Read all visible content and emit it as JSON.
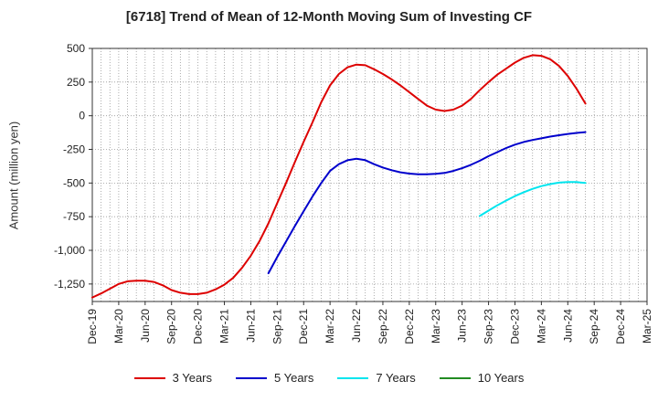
{
  "chart_data": {
    "type": "line",
    "title": "[6718]  Trend of Mean of 12-Month Moving Sum of Investing CF",
    "xlabel": "",
    "ylabel": "Amount (million yen)",
    "x_categories": [
      "Dec-19",
      "Mar-20",
      "Jun-20",
      "Sep-20",
      "Dec-20",
      "Mar-21",
      "Jun-21",
      "Sep-21",
      "Dec-21",
      "Mar-22",
      "Jun-22",
      "Sep-22",
      "Dec-22",
      "Mar-23",
      "Jun-23",
      "Sep-23",
      "Dec-23",
      "Mar-24",
      "Jun-24",
      "Sep-24",
      "Dec-24",
      "Mar-25"
    ],
    "y_ticks": [
      "500",
      "250",
      "0",
      "-250",
      "-500",
      "-750",
      "-1,000",
      "-1,250"
    ],
    "y_tick_values": [
      500,
      250,
      0,
      -250,
      -500,
      -750,
      -1000,
      -1250
    ],
    "ylim": [
      -1380,
      500
    ],
    "grid": true,
    "legend_position": "bottom",
    "series": [
      {
        "name": "3 Years",
        "color": "#dd0000",
        "x": [
          0,
          0.333,
          0.667,
          1,
          1.333,
          1.667,
          2,
          2.333,
          2.667,
          3,
          3.333,
          3.667,
          4,
          4.333,
          4.667,
          5,
          5.333,
          5.667,
          6,
          6.333,
          6.667,
          7,
          7.333,
          7.667,
          8,
          8.333,
          8.667,
          9,
          9.333,
          9.667,
          10,
          10.333,
          10.667,
          11,
          11.333,
          11.667,
          12,
          12.333,
          12.667,
          13,
          13.333,
          13.667,
          14,
          14.333,
          14.667,
          15,
          15.333,
          15.667,
          16,
          16.333,
          16.667,
          17,
          17.333,
          17.667,
          18,
          18.333,
          18.667,
          19
        ],
        "values": [
          -1350,
          -1320,
          -1285,
          -1250,
          -1230,
          -1225,
          -1225,
          -1235,
          -1260,
          -1295,
          -1315,
          -1325,
          -1325,
          -1315,
          -1290,
          -1255,
          -1205,
          -1130,
          -1040,
          -930,
          -800,
          -650,
          -500,
          -345,
          -195,
          -50,
          100,
          225,
          310,
          360,
          380,
          375,
          345,
          310,
          270,
          225,
          175,
          125,
          75,
          45,
          35,
          45,
          75,
          125,
          190,
          250,
          305,
          350,
          395,
          430,
          450,
          445,
          420,
          370,
          295,
          200,
          90,
          null
        ]
      },
      {
        "name": "5 Years",
        "color": "#0000cc",
        "x": [
          6.667,
          7,
          7.333,
          7.667,
          8,
          8.333,
          8.667,
          9,
          9.333,
          9.667,
          10,
          10.333,
          10.667,
          11,
          11.333,
          11.667,
          12,
          12.333,
          12.667,
          13,
          13.333,
          13.667,
          14,
          14.333,
          14.667,
          15,
          15.333,
          15.667,
          16,
          16.333,
          16.667,
          17,
          17.333,
          17.667,
          18,
          18.333,
          18.667,
          19
        ],
        "values": [
          -1170,
          -1050,
          -935,
          -820,
          -710,
          -600,
          -500,
          -410,
          -360,
          -330,
          -320,
          -330,
          -360,
          -385,
          -405,
          -420,
          -430,
          -435,
          -435,
          -432,
          -425,
          -410,
          -390,
          -365,
          -335,
          -300,
          -270,
          -240,
          -215,
          -195,
          -180,
          -168,
          -155,
          -145,
          -135,
          -128,
          -122,
          null
        ]
      },
      {
        "name": "7 Years",
        "color": "#00e5ee",
        "x": [
          14.667,
          15,
          15.333,
          15.667,
          16,
          16.333,
          16.667,
          17,
          17.333,
          17.667,
          18,
          18.333,
          18.667,
          19
        ],
        "values": [
          -745,
          -705,
          -665,
          -630,
          -597,
          -568,
          -543,
          -523,
          -508,
          -497,
          -492,
          -493,
          -500,
          null
        ]
      },
      {
        "name": "10 Years",
        "color": "#228b22",
        "x": [],
        "values": []
      }
    ]
  }
}
